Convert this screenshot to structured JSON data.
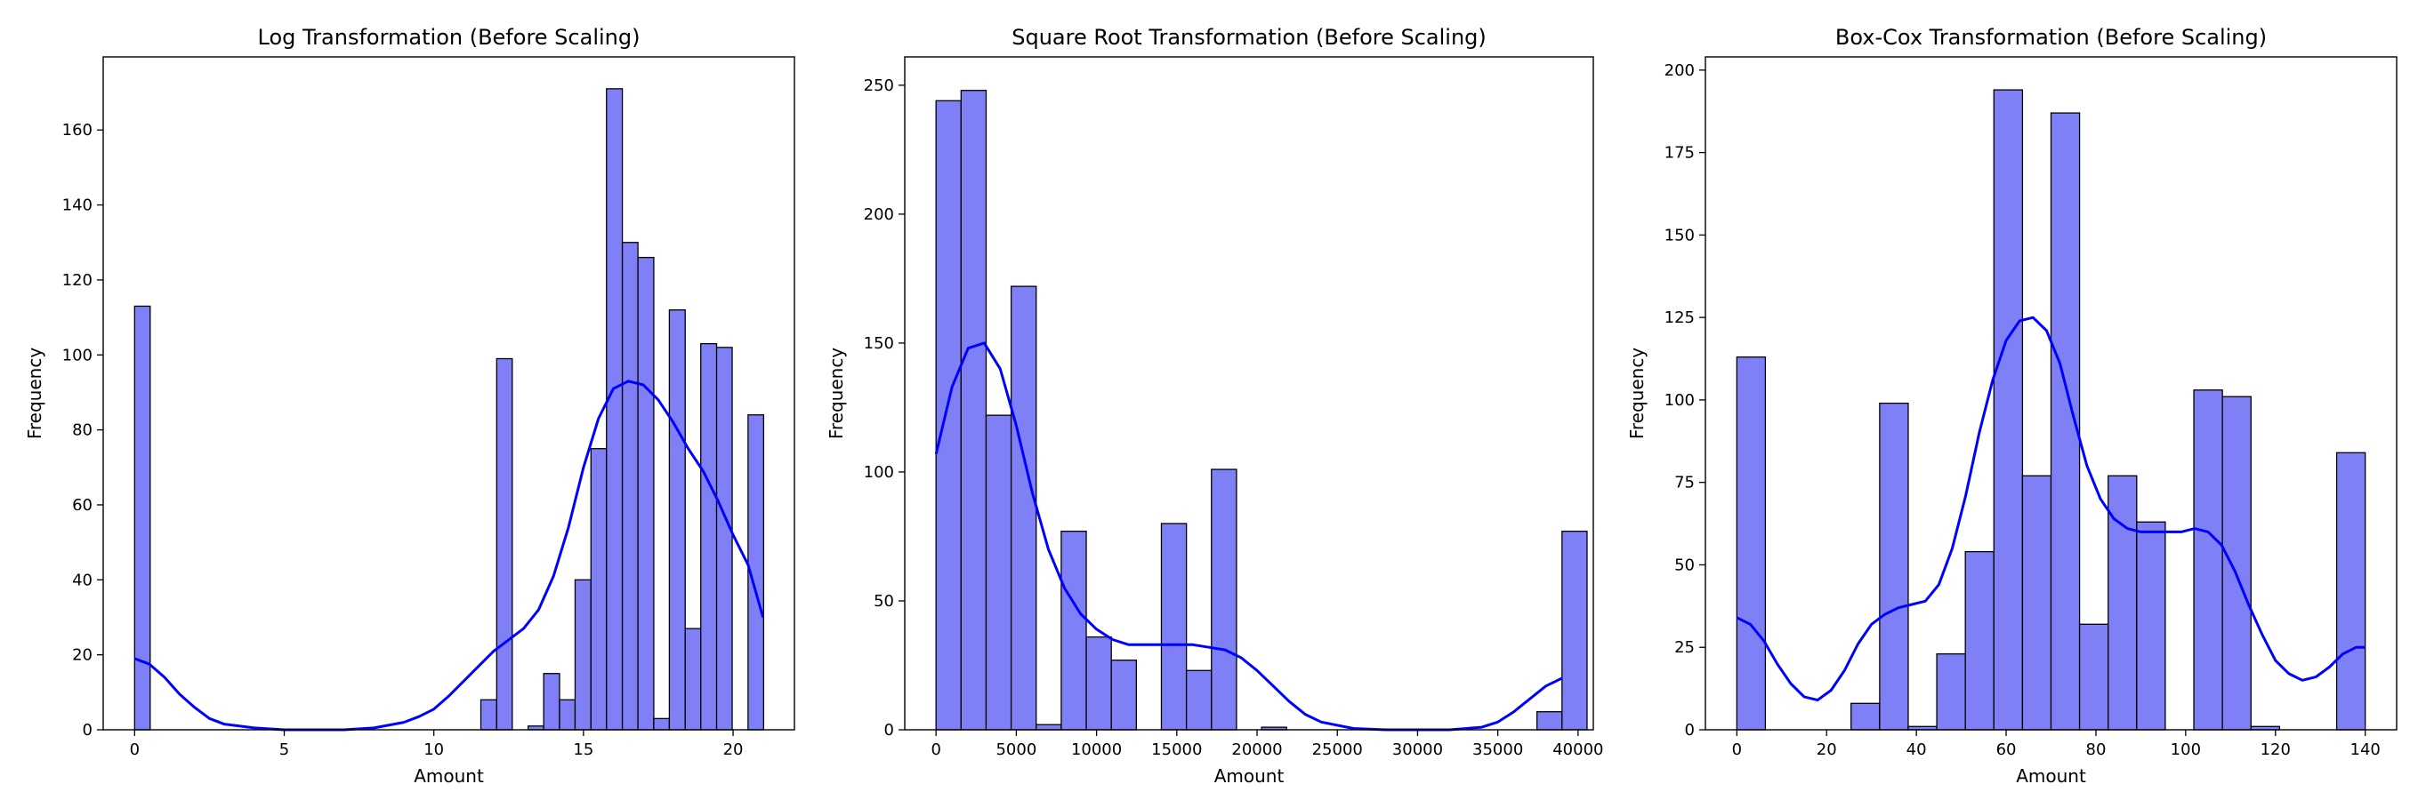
{
  "style": {
    "bar_color": "#7f80f6",
    "bar_edge": "#000000",
    "kde_color": "#0000ff"
  },
  "chart_data": [
    {
      "type": "bar",
      "title": "Log Transformation (Before Scaling)",
      "xlabel": "Amount",
      "ylabel": "Frequency",
      "xlim": [
        -1.05,
        22.05
      ],
      "ylim": [
        0,
        179.5
      ],
      "xticks": [
        0,
        5,
        10,
        15,
        20
      ],
      "yticks": [
        0,
        20,
        40,
        60,
        80,
        100,
        120,
        140,
        160
      ],
      "bins": [
        {
          "x0": 0.0,
          "x1": 0.52,
          "y": 113
        },
        {
          "x0": 11.57,
          "x1": 12.1,
          "y": 8
        },
        {
          "x0": 12.1,
          "x1": 12.62,
          "y": 99
        },
        {
          "x0": 13.15,
          "x1": 13.67,
          "y": 1
        },
        {
          "x0": 13.67,
          "x1": 14.2,
          "y": 15
        },
        {
          "x0": 14.2,
          "x1": 14.72,
          "y": 8
        },
        {
          "x0": 14.72,
          "x1": 15.25,
          "y": 40
        },
        {
          "x0": 15.25,
          "x1": 15.77,
          "y": 75
        },
        {
          "x0": 15.77,
          "x1": 16.3,
          "y": 171
        },
        {
          "x0": 16.3,
          "x1": 16.82,
          "y": 130
        },
        {
          "x0": 16.82,
          "x1": 17.35,
          "y": 126
        },
        {
          "x0": 17.35,
          "x1": 17.87,
          "y": 3
        },
        {
          "x0": 17.87,
          "x1": 18.4,
          "y": 112
        },
        {
          "x0": 18.4,
          "x1": 18.92,
          "y": 27
        },
        {
          "x0": 18.92,
          "x1": 19.45,
          "y": 103
        },
        {
          "x0": 19.45,
          "x1": 19.97,
          "y": 102
        },
        {
          "x0": 20.5,
          "x1": 21.02,
          "y": 84
        }
      ],
      "kde": {
        "x": [
          0,
          0.5,
          1,
          1.5,
          2,
          2.5,
          3,
          4,
          5,
          6,
          7,
          8,
          9,
          9.5,
          10,
          10.5,
          11,
          11.5,
          12,
          12.5,
          13,
          13.5,
          14,
          14.5,
          15,
          15.5,
          16,
          16.5,
          17,
          17.5,
          18,
          18.5,
          19,
          19.5,
          20,
          20.5,
          21
        ],
        "y": [
          19,
          17.5,
          14,
          9.5,
          6,
          3,
          1.5,
          0.5,
          0,
          0,
          0,
          0.5,
          2,
          3.5,
          5.5,
          9,
          13,
          17,
          21,
          24,
          27,
          32,
          41,
          54,
          70,
          83,
          91,
          93,
          92,
          88,
          82,
          75,
          69,
          61,
          52,
          44,
          30
        ]
      }
    },
    {
      "type": "bar",
      "title": "Square Root Transformation (Before Scaling)",
      "xlabel": "Amount",
      "ylabel": "Frequency",
      "xlim": [
        -1950,
        40950
      ],
      "ylim": [
        0,
        261
      ],
      "xticks": [
        0,
        5000,
        10000,
        15000,
        20000,
        25000,
        30000,
        35000,
        40000
      ],
      "yticks": [
        0,
        50,
        100,
        150,
        200,
        250
      ],
      "bins": [
        {
          "x0": 0,
          "x1": 1560,
          "y": 244
        },
        {
          "x0": 1560,
          "x1": 3120,
          "y": 248
        },
        {
          "x0": 3120,
          "x1": 4680,
          "y": 122
        },
        {
          "x0": 4680,
          "x1": 6240,
          "y": 172
        },
        {
          "x0": 6240,
          "x1": 7800,
          "y": 2
        },
        {
          "x0": 7800,
          "x1": 9360,
          "y": 77
        },
        {
          "x0": 9360,
          "x1": 10920,
          "y": 36
        },
        {
          "x0": 10920,
          "x1": 12480,
          "y": 27
        },
        {
          "x0": 14040,
          "x1": 15600,
          "y": 80
        },
        {
          "x0": 15600,
          "x1": 17160,
          "y": 23
        },
        {
          "x0": 17160,
          "x1": 18720,
          "y": 101
        },
        {
          "x0": 20280,
          "x1": 21840,
          "y": 1
        },
        {
          "x0": 37440,
          "x1": 39000,
          "y": 7
        },
        {
          "x0": 39000,
          "x1": 40560,
          "y": 77
        }
      ],
      "kde": {
        "x": [
          0,
          1000,
          2000,
          3000,
          4000,
          5000,
          6000,
          7000,
          8000,
          9000,
          10000,
          11000,
          12000,
          13000,
          14000,
          15000,
          16000,
          17000,
          18000,
          19000,
          20000,
          21000,
          22000,
          23000,
          24000,
          26000,
          28000,
          30000,
          32000,
          34000,
          35000,
          36000,
          37000,
          38000,
          39000
        ],
        "y": [
          107,
          133,
          148,
          150,
          140,
          118,
          92,
          70,
          55,
          45,
          39,
          35,
          33,
          33,
          33,
          33,
          33,
          32,
          31,
          28,
          23,
          17,
          11,
          6,
          3,
          0.5,
          0,
          0,
          0,
          1,
          3,
          7,
          12,
          17,
          20
        ]
      }
    },
    {
      "type": "bar",
      "title": "Box-Cox Transformation (Before Scaling)",
      "xlabel": "Amount",
      "ylabel": "Frequency",
      "xlim": [
        -7,
        147
      ],
      "ylim": [
        0,
        204
      ],
      "xticks": [
        0,
        20,
        40,
        60,
        80,
        100,
        120,
        140
      ],
      "yticks": [
        0,
        25,
        50,
        75,
        100,
        125,
        150,
        175,
        200
      ],
      "bins": [
        {
          "x0": 0,
          "x1": 6.36,
          "y": 113
        },
        {
          "x0": 25.45,
          "x1": 31.82,
          "y": 8
        },
        {
          "x0": 31.82,
          "x1": 38.18,
          "y": 99
        },
        {
          "x0": 38.18,
          "x1": 44.55,
          "y": 1
        },
        {
          "x0": 44.55,
          "x1": 50.91,
          "y": 23
        },
        {
          "x0": 50.91,
          "x1": 57.27,
          "y": 54
        },
        {
          "x0": 57.27,
          "x1": 63.64,
          "y": 194
        },
        {
          "x0": 63.64,
          "x1": 70.0,
          "y": 77
        },
        {
          "x0": 70.0,
          "x1": 76.36,
          "y": 187
        },
        {
          "x0": 76.36,
          "x1": 82.73,
          "y": 32
        },
        {
          "x0": 82.73,
          "x1": 89.09,
          "y": 77
        },
        {
          "x0": 89.09,
          "x1": 95.45,
          "y": 63
        },
        {
          "x0": 101.82,
          "x1": 108.18,
          "y": 103
        },
        {
          "x0": 108.18,
          "x1": 114.55,
          "y": 101
        },
        {
          "x0": 114.55,
          "x1": 120.91,
          "y": 1
        },
        {
          "x0": 133.64,
          "x1": 140.0,
          "y": 84
        }
      ],
      "kde": {
        "x": [
          0,
          3,
          6,
          9,
          12,
          15,
          18,
          21,
          24,
          27,
          30,
          33,
          36,
          39,
          42,
          45,
          48,
          51,
          54,
          57,
          60,
          63,
          66,
          69,
          72,
          75,
          78,
          81,
          84,
          87,
          90,
          93,
          96,
          99,
          102,
          105,
          108,
          111,
          114,
          117,
          120,
          123,
          126,
          129,
          132,
          135,
          138,
          140
        ],
        "y": [
          34,
          32,
          27,
          20,
          14,
          10,
          9,
          12,
          18,
          26,
          32,
          35,
          37,
          38,
          39,
          44,
          55,
          71,
          90,
          106,
          118,
          124,
          125,
          121,
          111,
          95,
          80,
          70,
          64,
          61,
          60,
          60,
          60,
          60,
          61,
          60,
          56,
          48,
          38,
          29,
          21,
          17,
          15,
          16,
          19,
          23,
          25,
          25
        ]
      }
    }
  ]
}
